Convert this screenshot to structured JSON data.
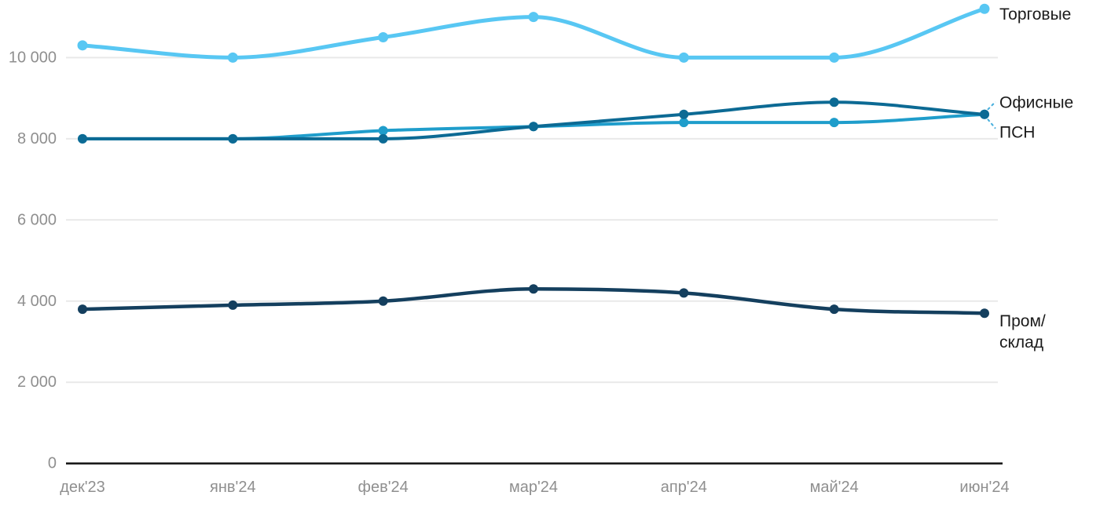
{
  "chart_data": {
    "type": "line",
    "title": "",
    "xlabel": "",
    "ylabel": "",
    "x_categories": [
      "дек'23",
      "янв'24",
      "фев'24",
      "мар'24",
      "апр'24",
      "май'24",
      "июн'24"
    ],
    "series": [
      {
        "id": "torgovye",
        "name": "Торговые",
        "label_lines": [
          "Торговые"
        ],
        "values": [
          10300,
          10000,
          10500,
          11000,
          10000,
          10000,
          11200
        ],
        "color": "#58C7F3"
      },
      {
        "id": "psn",
        "name": "ПСН",
        "label_lines": [
          "ПСН"
        ],
        "values": [
          8000,
          8000,
          8200,
          8300,
          8400,
          8400,
          8600
        ],
        "color": "#1F9DCB"
      },
      {
        "id": "ofisnye",
        "name": "Офисные",
        "label_lines": [
          "Офисные"
        ],
        "values": [
          8000,
          8000,
          8000,
          8300,
          8600,
          8900,
          8600
        ],
        "color": "#0C6A94"
      },
      {
        "id": "prom-sklad",
        "name": "Пром/склад",
        "label_lines": [
          "Пром/",
          "склад"
        ],
        "values": [
          3800,
          3900,
          4000,
          4300,
          4200,
          3800,
          3700
        ],
        "color": "#143F5E"
      }
    ],
    "y_ticks": [
      {
        "value": 0,
        "label": "0"
      },
      {
        "value": 2000,
        "label": "2 000"
      },
      {
        "value": 4000,
        "label": "4 000"
      },
      {
        "value": 6000,
        "label": "6 000"
      },
      {
        "value": 8000,
        "label": "8 000"
      },
      {
        "value": 10000,
        "label": "10 000"
      }
    ],
    "ylim": [
      0,
      11400
    ],
    "grid": "horizontal-only",
    "legend_position": "right-end-labels",
    "curve": "smooth-monotone"
  },
  "colors": {
    "background": "#FFFFFF",
    "gridline": "#E9E9E9",
    "axis_line": "#1B1B1B",
    "tick_label": "#8F8F8F",
    "series_label": "#1B1B1B",
    "leader_dash": "#45AEDC"
  }
}
